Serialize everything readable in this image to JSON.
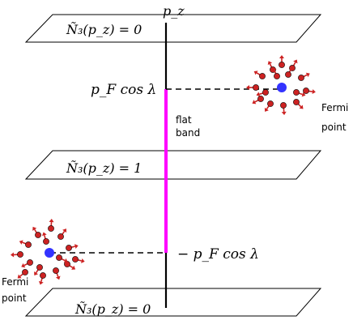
{
  "axis_label": "p_z",
  "plane_labels": {
    "top": "Ñ₃(p_z) = 0",
    "middle": "Ñ₃(p_z) = 1",
    "bottom": "Ñ₃(p_z) = 0"
  },
  "level_labels": {
    "upper": "p_F cos λ",
    "lower": "− p_F cos λ"
  },
  "flat_band_label": [
    "flat",
    "band"
  ],
  "fermi_point_label": [
    "Fermi",
    "point"
  ],
  "colors": {
    "flat_band": "#ff00ff",
    "fermi_point": "#3333ff",
    "hedgehog": "#cc2222",
    "line": "#000000"
  }
}
